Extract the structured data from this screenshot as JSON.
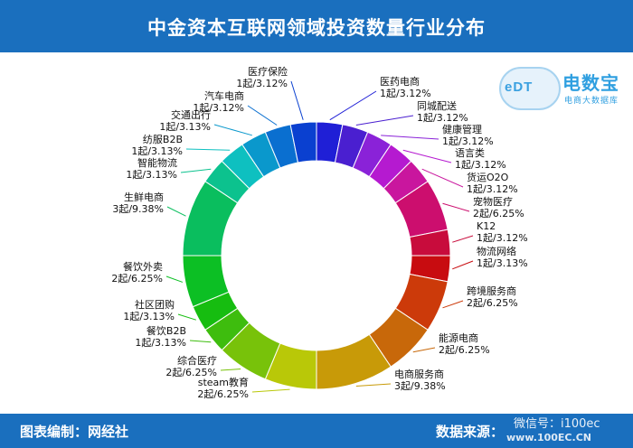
{
  "header": {
    "title": "中金资本互联网领域投资数量行业分布"
  },
  "footer": {
    "left": "图表编制：网经社",
    "right": "数据来源：",
    "wechat": "微信号：i100ec",
    "watermark": "www.100EC.CN"
  },
  "logo": {
    "mark": "eDT",
    "name": "电数宝",
    "sub": "电商大数据库"
  },
  "chart_data": {
    "type": "pie",
    "donut": true,
    "title": "中金资本互联网领域投资数量行业分布",
    "slices": [
      {
        "name": "医药电商",
        "count": 1,
        "label": "1起/3.12%",
        "color": "#1f1fd6"
      },
      {
        "name": "同城配送",
        "count": 1,
        "label": "1起/3.12%",
        "color": "#4a1fd0"
      },
      {
        "name": "健康管理",
        "count": 1,
        "label": "1起/3.12%",
        "color": "#8a22d8"
      },
      {
        "name": "语言类",
        "count": 1,
        "label": "1起/3.12%",
        "color": "#b51ad0"
      },
      {
        "name": "货运O2O",
        "count": 1,
        "label": "1起/3.12%",
        "color": "#c9169e"
      },
      {
        "name": "宠物医疗",
        "count": 2,
        "label": "2起/6.25%",
        "color": "#cc0e6e"
      },
      {
        "name": "K12",
        "count": 1,
        "label": "1起/3.12%",
        "color": "#c80c3c"
      },
      {
        "name": "物流网络",
        "count": 1,
        "label": "1起/3.13%",
        "color": "#c80c10"
      },
      {
        "name": "跨境服务商",
        "count": 2,
        "label": "2起/6.25%",
        "color": "#cc3a0a"
      },
      {
        "name": "能源电商",
        "count": 2,
        "label": "2起/6.25%",
        "color": "#c8680a"
      },
      {
        "name": "电商服务商",
        "count": 3,
        "label": "3起/9.38%",
        "color": "#c89a08"
      },
      {
        "name": "steam教育",
        "count": 2,
        "label": "2起/6.25%",
        "color": "#b9c808"
      },
      {
        "name": "综合医疗",
        "count": 2,
        "label": "2起/6.25%",
        "color": "#78c20a"
      },
      {
        "name": "餐饮B2B",
        "count": 1,
        "label": "1起/3.13%",
        "color": "#3ebd0e"
      },
      {
        "name": "社区团购",
        "count": 1,
        "label": "1起/3.13%",
        "color": "#16bd10"
      },
      {
        "name": "餐饮外卖",
        "count": 2,
        "label": "2起/6.25%",
        "color": "#0cbf24"
      },
      {
        "name": "生鲜电商",
        "count": 3,
        "label": "3起/9.38%",
        "color": "#0abe5e"
      },
      {
        "name": "智能物流",
        "count": 1,
        "label": "1起/3.13%",
        "color": "#0cc28e"
      },
      {
        "name": "纺服B2B",
        "count": 1,
        "label": "1起/3.13%",
        "color": "#0ec0c0"
      },
      {
        "name": "交通出行",
        "count": 1,
        "label": "1起/3.13%",
        "color": "#0a98cc"
      },
      {
        "name": "汽车电商",
        "count": 1,
        "label": "1起/3.12%",
        "color": "#0a6fd0"
      },
      {
        "name": "医疗保险",
        "count": 1,
        "label": "1起/3.12%",
        "color": "#0a40d0"
      }
    ]
  }
}
